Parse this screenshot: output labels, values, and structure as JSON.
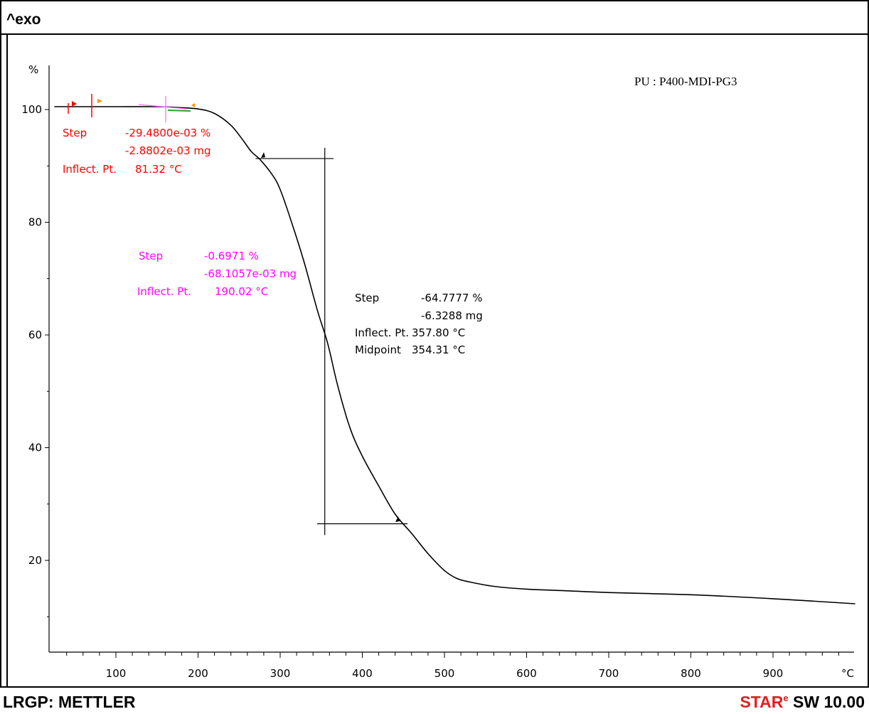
{
  "header": {
    "text": "^exo"
  },
  "footer": {
    "left_text": "LRGP: METTLER",
    "right_text_red": "STAR",
    "right_sup": "e",
    "right_text": " SW 10.00"
  },
  "colors": {
    "curve": "#000000",
    "annotation_red": "#ff0000",
    "annotation_magenta": "#ff00ff",
    "annotation_black": "#000000",
    "footer_red": "#e02020"
  },
  "chart_data": {
    "type": "line",
    "title": "PU : P400-MDI-PG3",
    "xlabel": "°C",
    "ylabel": "%",
    "xlim": [
      25,
      1000
    ],
    "ylim": [
      3,
      110
    ],
    "x_ticks": [
      100,
      200,
      300,
      400,
      500,
      600,
      700,
      800,
      900
    ],
    "y_ticks": [
      20,
      40,
      60,
      80,
      100
    ],
    "grid": false,
    "legend": "none",
    "series": [
      {
        "x": [
          25,
          60,
          100,
          150,
          170,
          200,
          220,
          240,
          255,
          265,
          275,
          290,
          300,
          315,
          330,
          345,
          357.8,
          370,
          385,
          400,
          420,
          440,
          460,
          480,
          500,
          515,
          530,
          560,
          600,
          650,
          700,
          800,
          900,
          1000
        ],
        "values": [
          100.5,
          100.5,
          100.5,
          100.5,
          100.4,
          100.1,
          99.3,
          97.2,
          94.5,
          92.5,
          91.2,
          88.5,
          85.8,
          79.5,
          72.5,
          64.5,
          58.5,
          51,
          43.5,
          38.5,
          33.2,
          28.2,
          24.8,
          21.2,
          18.2,
          16.8,
          16.2,
          15.4,
          14.9,
          14.6,
          14.3,
          13.9,
          13.2,
          12.3
        ]
      }
    ],
    "annotations": [
      {
        "group": "red",
        "lines": [
          [
            "Step",
            "-29.4800e-03 %"
          ],
          [
            "",
            "-2.8802e-03 mg"
          ],
          [
            "Inflect. Pt.",
            "81.32 °C"
          ]
        ]
      },
      {
        "group": "magenta",
        "lines": [
          [
            "Step",
            "-0.6971 %"
          ],
          [
            "",
            "-68.1057e-03 mg"
          ],
          [
            "Inflect. Pt.",
            "190.02 °C"
          ]
        ]
      },
      {
        "group": "black",
        "lines": [
          [
            "Step",
            "-64.7777 %"
          ],
          [
            "",
            "-6.3288 mg"
          ],
          [
            "Inflect. Pt.",
            "357.80 °C"
          ],
          [
            "Midpoint",
            "354.31 °C"
          ]
        ]
      }
    ],
    "step_construction": {
      "upper_level": 91.3,
      "lower_level": 26.5,
      "vertical_x": 354.31,
      "upper_x_range": [
        270,
        365
      ],
      "lower_x_range": [
        345,
        455
      ],
      "vertical_y_range": [
        24.5,
        93.2
      ]
    }
  }
}
